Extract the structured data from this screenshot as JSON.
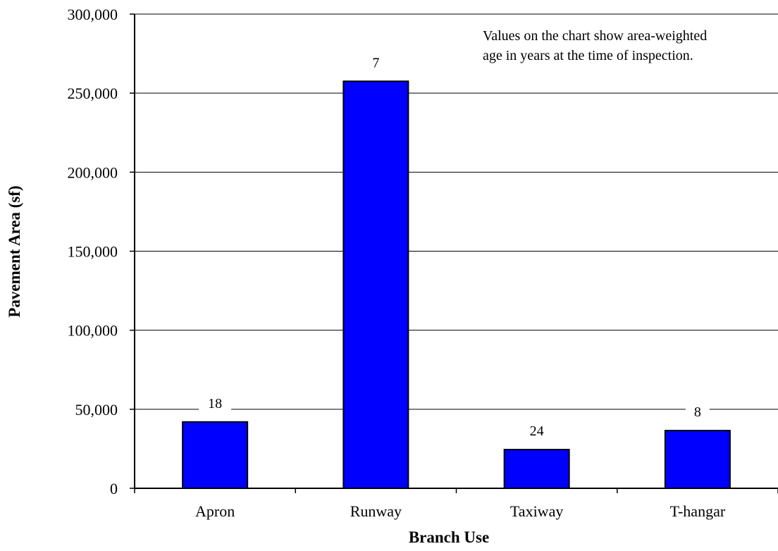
{
  "chart_data": {
    "type": "bar",
    "title": "",
    "categories": [
      "Apron",
      "Runway",
      "Taxiway",
      "T-hangar"
    ],
    "values": [
      42000,
      257500,
      24500,
      36500
    ],
    "data_labels": [
      "18",
      "7",
      "24",
      "8"
    ],
    "xlabel": "Branch Use",
    "ylabel": "Pavement Area (sf)",
    "ylim": [
      0,
      300000
    ],
    "yticks": [
      0,
      50000,
      100000,
      150000,
      200000,
      250000,
      300000
    ],
    "ytick_labels": [
      "0",
      "50,000",
      "100,000",
      "150,000",
      "200,000",
      "250,000",
      "300,000"
    ],
    "annotation": [
      "Values on the chart show area-weighted",
      "age in years at the time of inspection."
    ],
    "grid": true,
    "legend": "none",
    "bar_color": "#0000ff"
  }
}
